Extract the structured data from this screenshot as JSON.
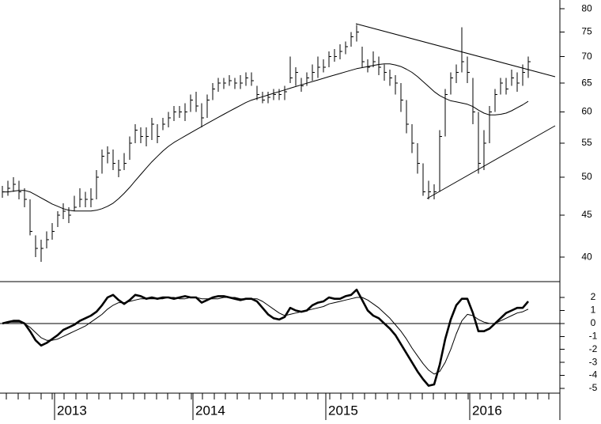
{
  "chart_data": [
    {
      "type": "ohlc",
      "color": "#000000",
      "log_scale": true,
      "categories": [
        null,
        null,
        null,
        null,
        null,
        null,
        null,
        null,
        null,
        null,
        "2013",
        null,
        null,
        null,
        null,
        null,
        null,
        null,
        null,
        null,
        null,
        null,
        null,
        null,
        null,
        null,
        null,
        null,
        null,
        null,
        null,
        null,
        null,
        null,
        null,
        "2014",
        null,
        null,
        null,
        null,
        null,
        null,
        null,
        null,
        null,
        null,
        null,
        null,
        null,
        null,
        null,
        null,
        null,
        null,
        null,
        null,
        null,
        null,
        null,
        "2015",
        null,
        null,
        null,
        null,
        null,
        null,
        null,
        null,
        null,
        null,
        null,
        null,
        null,
        null,
        null,
        null,
        null,
        null,
        null,
        null,
        null,
        null,
        null,
        null,
        null,
        "2016",
        null,
        null,
        null,
        null,
        null,
        null,
        null,
        null,
        null,
        null
      ],
      "high": [
        48.8,
        49.5,
        50,
        49.5,
        48.5,
        47,
        42.5,
        42,
        43,
        44,
        45.5,
        46.5,
        46,
        47.5,
        48.5,
        48,
        48.5,
        51,
        54,
        54.5,
        54,
        52.5,
        53.5,
        56,
        58,
        57.5,
        57.5,
        59,
        58,
        59,
        60,
        61,
        61,
        61.5,
        63,
        63.5,
        61.5,
        63,
        65,
        66,
        66,
        66.5,
        66,
        66.5,
        67,
        67,
        64.5,
        63.5,
        63.5,
        64,
        64,
        64.5,
        70,
        68,
        66,
        67,
        68.5,
        70,
        69.5,
        71,
        71.5,
        72.5,
        73,
        75,
        76.5,
        72,
        69.5,
        71,
        70,
        68.5,
        67.5,
        66.5,
        65,
        62,
        58,
        55,
        52,
        49.5,
        49,
        57,
        64,
        67,
        68.5,
        76,
        70,
        66,
        60,
        57,
        61,
        64,
        66,
        66,
        67.5,
        67,
        68.5,
        70
      ],
      "low": [
        47.2,
        47.5,
        48,
        47,
        46,
        42.5,
        40,
        39.5,
        41,
        42,
        43.5,
        44.5,
        44,
        45.5,
        46,
        46,
        46,
        47,
        50.5,
        52,
        51,
        50,
        51,
        52.5,
        55,
        55,
        54.5,
        55.5,
        55,
        57,
        57.5,
        58.5,
        59,
        58.5,
        60,
        60,
        57.5,
        59,
        62,
        63.5,
        64,
        64.5,
        64,
        64,
        64.5,
        64.5,
        62,
        61.5,
        61.5,
        62,
        62,
        62,
        65,
        64.5,
        63.5,
        64.5,
        65.5,
        66,
        67,
        68,
        69,
        69.5,
        70.5,
        72,
        73,
        68,
        67,
        68,
        66.5,
        65.5,
        64.5,
        63,
        60,
        56.5,
        53.5,
        50.5,
        47.5,
        47,
        47,
        48,
        56,
        63,
        65,
        67,
        65,
        58,
        50.5,
        51,
        55,
        60,
        63,
        63,
        64.5,
        63.5,
        64.5,
        66
      ],
      "close": [
        48,
        48.5,
        49,
        48,
        47,
        43,
        41,
        41,
        42,
        43,
        45,
        45.5,
        45,
        46,
        47,
        47,
        47,
        50,
        53,
        53.5,
        52,
        51,
        52,
        55,
        57,
        56,
        56,
        58,
        56,
        58,
        59,
        60,
        60,
        60,
        62,
        61,
        59,
        62,
        64,
        65,
        65,
        65.5,
        65,
        65,
        66,
        65.5,
        63,
        62,
        62.5,
        63,
        63,
        63.5,
        66,
        67,
        64.5,
        66,
        67,
        68,
        68,
        70,
        70,
        71,
        72,
        74,
        75,
        69,
        68,
        69,
        68,
        67,
        66,
        65,
        62,
        58,
        55,
        52,
        48,
        48,
        48,
        56,
        63,
        66,
        67,
        69,
        67,
        60,
        52,
        55,
        60,
        63,
        65,
        64,
        66,
        65,
        67,
        69
      ],
      "ma": {
        "values": [
          48,
          48,
          48.1,
          48.2,
          48.2,
          48,
          47.6,
          47.2,
          46.8,
          46.4,
          46.1,
          45.8,
          45.6,
          45.5,
          45.5,
          45.5,
          45.5,
          45.6,
          45.8,
          46.1,
          46.5,
          47.1,
          47.8,
          48.6,
          49.5,
          50.4,
          51.3,
          52.2,
          53,
          53.8,
          54.5,
          55.1,
          55.6,
          56.1,
          56.6,
          57.1,
          57.6,
          58.1,
          58.6,
          59.1,
          59.6,
          60.1,
          60.6,
          61.1,
          61.6,
          62,
          62.3,
          62.6,
          62.9,
          63.2,
          63.5,
          63.8,
          64.1,
          64.4,
          64.7,
          65,
          65.3,
          65.6,
          65.9,
          66.2,
          66.5,
          66.8,
          67.1,
          67.4,
          67.7,
          67.9,
          68.1,
          68.3,
          68.5,
          68.6,
          68.6,
          68.4,
          68.1,
          67.6,
          67,
          66.2,
          65.3,
          64.4,
          63.5,
          62.8,
          62.3,
          61.9,
          61.7,
          61.5,
          61.3,
          60.9,
          60.3,
          59.8,
          59.5,
          59.5,
          59.6,
          59.8,
          60.2,
          60.7,
          61.2,
          61.8
        ]
      },
      "ylim": [
        37.2,
        82
      ],
      "yticks": [
        40,
        45,
        50,
        55,
        60,
        65,
        70,
        75,
        80
      ]
    },
    {
      "type": "line",
      "zero_line": true,
      "series": [
        {
          "color": "#000000",
          "width": 2.6,
          "values": [
            0,
            0.1,
            0.2,
            0.2,
            0,
            -0.6,
            -1.3,
            -1.7,
            -1.5,
            -1.2,
            -0.9,
            -0.5,
            -0.3,
            -0.1,
            0.2,
            0.4,
            0.6,
            0.9,
            1.4,
            2,
            2.2,
            1.8,
            1.5,
            1.8,
            2.2,
            2.1,
            1.9,
            2,
            1.9,
            2,
            2,
            1.9,
            2,
            2.1,
            2,
            2,
            1.6,
            1.8,
            2,
            2.1,
            2.1,
            2,
            1.9,
            1.8,
            1.9,
            1.9,
            1.7,
            1.2,
            0.7,
            0.4,
            0.3,
            0.5,
            1.2,
            1,
            0.9,
            1,
            1.4,
            1.6,
            1.7,
            2,
            1.9,
            1.9,
            2.1,
            2.2,
            2.6,
            1.8,
            1,
            0.6,
            0.4,
            0,
            -0.4,
            -0.9,
            -1.6,
            -2.3,
            -3,
            -3.7,
            -4.3,
            -4.8,
            -4.7,
            -3.2,
            -1.2,
            0.3,
            1.4,
            1.9,
            1.9,
            0.8,
            -0.6,
            -0.6,
            -0.4,
            0,
            0.4,
            0.8,
            1,
            1.2,
            1.2,
            1.7
          ]
        },
        {
          "color": "#000000",
          "width": 1,
          "values": [
            0,
            0.1,
            0.1,
            0.1,
            0,
            -0.3,
            -0.7,
            -1.1,
            -1.3,
            -1.3,
            -1.2,
            -1,
            -0.8,
            -0.6,
            -0.4,
            -0.2,
            0.1,
            0.4,
            0.7,
            1.1,
            1.4,
            1.6,
            1.6,
            1.7,
            1.8,
            1.9,
            1.9,
            1.9,
            1.9,
            1.9,
            2,
            2,
            1.9,
            1.9,
            2,
            2,
            1.9,
            1.9,
            1.9,
            1.9,
            2,
            2,
            2,
            1.9,
            1.9,
            1.9,
            1.9,
            1.7,
            1.4,
            1.1,
            0.8,
            0.6,
            0.7,
            0.8,
            0.9,
            1,
            1.1,
            1.2,
            1.3,
            1.5,
            1.6,
            1.7,
            1.8,
            1.9,
            2,
            2,
            1.8,
            1.5,
            1.2,
            0.8,
            0.4,
            -0.1,
            -0.6,
            -1.2,
            -1.9,
            -2.5,
            -3.1,
            -3.6,
            -3.9,
            -3.7,
            -3,
            -2,
            -0.8,
            0.2,
            0.7,
            0.6,
            0.3,
            0.1,
            0,
            0,
            0.2,
            0.4,
            0.6,
            0.8,
            0.9,
            1.1
          ]
        }
      ],
      "ylim": [
        -5.37,
        3.16
      ],
      "yticks": [
        2,
        1,
        0,
        -1,
        -2,
        -3,
        -4,
        -5
      ]
    }
  ]
}
